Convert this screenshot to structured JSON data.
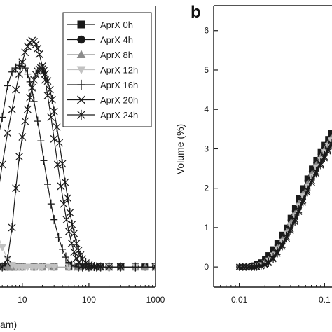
{
  "chart_data": [
    {
      "panel_label": "",
      "type": "line",
      "xscale": "log",
      "xlim": [
        4,
        1000
      ],
      "ylim": [
        -0.3,
        6.6
      ],
      "x_tick_labels": [
        "10",
        "100",
        "1000"
      ],
      "x_ticks": [
        10,
        100,
        1000
      ],
      "xlabel": "am)",
      "legend_placement": "top-right",
      "grid": false,
      "series": [
        {
          "name": "AprX 0h",
          "marker": "square",
          "x": [
            4,
            5,
            6,
            7,
            8,
            10,
            15,
            20,
            30,
            50,
            70,
            100,
            150,
            200,
            300,
            500,
            700,
            1000
          ],
          "y": [
            0,
            0,
            0,
            0,
            0,
            0,
            0,
            0,
            0,
            0,
            0,
            0,
            0,
            0,
            0,
            0,
            0,
            0
          ]
        },
        {
          "name": "AprX 4h",
          "marker": "circle",
          "x": [
            4,
            5,
            6,
            7,
            8,
            10,
            15,
            20,
            30,
            50,
            70,
            100,
            150,
            200,
            300,
            500,
            700,
            1000
          ],
          "y": [
            0,
            0,
            0,
            0,
            0,
            0,
            0,
            0,
            0,
            0,
            0,
            0,
            0,
            0,
            0,
            0,
            0,
            0
          ]
        },
        {
          "name": "AprX 8h",
          "marker": "triangle-up",
          "x": [
            4,
            5,
            6,
            7,
            8,
            10,
            15,
            20,
            30,
            50,
            70,
            100,
            150,
            200,
            300,
            500,
            700,
            1000
          ],
          "y": [
            0,
            0,
            0,
            0,
            0,
            0,
            0,
            0,
            0,
            0,
            0,
            0,
            0,
            0,
            0,
            0,
            0,
            0
          ]
        },
        {
          "name": "AprX 12h",
          "marker": "triangle-down",
          "x": [
            4,
            5,
            6,
            7,
            8,
            9,
            10,
            11,
            12,
            14,
            16,
            18,
            20,
            25,
            30,
            50,
            100,
            200,
            500,
            1000
          ],
          "y": [
            0.95,
            0.5,
            0.2,
            0.05,
            0,
            0,
            0,
            0,
            0,
            0,
            0,
            0,
            0,
            0,
            0,
            0,
            0,
            0,
            0,
            0
          ]
        },
        {
          "name": "AprX 16h",
          "marker": "plus",
          "x": [
            4,
            5,
            6,
            7,
            8,
            9,
            10,
            11,
            12,
            13,
            14,
            15,
            17,
            19,
            21,
            24,
            27,
            30,
            35,
            40,
            45,
            50,
            55,
            60,
            70,
            80,
            100,
            200,
            500,
            1000
          ],
          "y": [
            3.0,
            3.8,
            4.6,
            4.95,
            5.05,
            5.12,
            5.1,
            5.05,
            4.9,
            4.7,
            4.5,
            4.2,
            3.7,
            3.2,
            2.7,
            2.1,
            1.6,
            1.2,
            0.75,
            0.45,
            0.25,
            0.12,
            0.05,
            0.02,
            0,
            0,
            0,
            0,
            0,
            0
          ]
        },
        {
          "name": "AprX 20h",
          "marker": "x",
          "x": [
            4,
            5,
            6,
            7,
            8,
            9,
            10,
            11,
            12,
            13,
            14,
            15,
            16,
            17,
            18,
            20,
            22,
            24,
            27,
            30,
            34,
            38,
            42,
            46,
            50,
            55,
            60,
            65,
            70,
            80,
            90,
            100,
            120,
            150,
            300,
            1000
          ],
          "y": [
            1.5,
            2.6,
            3.4,
            4.0,
            4.5,
            4.9,
            5.2,
            5.45,
            5.6,
            5.7,
            5.75,
            5.72,
            5.65,
            5.55,
            5.4,
            5.1,
            4.75,
            4.35,
            3.8,
            3.25,
            2.6,
            2.05,
            1.6,
            1.2,
            0.9,
            0.6,
            0.38,
            0.22,
            0.12,
            0.04,
            0.01,
            0,
            0,
            0,
            0,
            0
          ]
        },
        {
          "name": "AprX 24h",
          "marker": "star",
          "x": [
            4,
            5,
            6,
            7,
            8,
            9,
            10,
            11,
            12,
            13,
            14,
            15,
            16,
            17,
            18,
            19,
            20,
            21,
            22,
            24,
            26,
            28,
            30,
            33,
            36,
            40,
            44,
            48,
            52,
            56,
            60,
            65,
            70,
            75,
            80,
            90,
            100,
            110,
            120,
            130,
            150,
            200,
            300,
            1000
          ],
          "y": [
            0,
            0,
            0.2,
            1.0,
            2.0,
            2.8,
            3.3,
            3.7,
            4.0,
            4.3,
            4.55,
            4.75,
            4.88,
            4.97,
            5.02,
            5.05,
            5.03,
            4.98,
            4.9,
            4.72,
            4.5,
            4.25,
            3.95,
            3.55,
            3.15,
            2.62,
            2.15,
            1.75,
            1.38,
            1.08,
            0.85,
            0.6,
            0.42,
            0.3,
            0.2,
            0.1,
            0.05,
            0.02,
            0.01,
            0,
            0,
            0,
            0,
            0
          ]
        }
      ]
    },
    {
      "panel_label": "b",
      "type": "line",
      "xscale": "log",
      "xlim": [
        0.005,
        0.2
      ],
      "ylim": [
        -0.3,
        6.6
      ],
      "x_tick_labels": [
        "0.01",
        "0.1"
      ],
      "x_ticks": [
        0.01,
        0.1
      ],
      "y_tick_labels": [
        "0",
        "1",
        "2",
        "3",
        "4",
        "5",
        "6"
      ],
      "y_ticks": [
        0,
        1,
        2,
        3,
        4,
        5,
        6
      ],
      "ylabel": "Volume (%)",
      "grid": false,
      "series": [
        {
          "name": "AprX 0h",
          "marker": "square",
          "x": [
            0.01,
            0.011,
            0.012,
            0.013,
            0.014,
            0.015,
            0.016,
            0.018,
            0.02,
            0.022,
            0.025,
            0.028,
            0.032,
            0.036,
            0.04,
            0.045,
            0.05,
            0.056,
            0.063,
            0.071,
            0.08,
            0.09,
            0.1,
            0.11,
            0.12
          ],
          "y": [
            0,
            0,
            0,
            0,
            0.02,
            0.04,
            0.07,
            0.12,
            0.2,
            0.3,
            0.45,
            0.62,
            0.82,
            1.0,
            1.25,
            1.5,
            1.75,
            2.0,
            2.25,
            2.5,
            2.72,
            2.92,
            3.1,
            3.25,
            3.4
          ]
        },
        {
          "name": "AprX 4h",
          "marker": "circle",
          "x": [
            0.01,
            0.011,
            0.012,
            0.013,
            0.014,
            0.015,
            0.016,
            0.018,
            0.02,
            0.022,
            0.025,
            0.028,
            0.032,
            0.036,
            0.04,
            0.045,
            0.05,
            0.056,
            0.063,
            0.071,
            0.08,
            0.09,
            0.1,
            0.11,
            0.12
          ],
          "y": [
            0,
            0,
            0,
            0,
            0,
            0.02,
            0.04,
            0.08,
            0.15,
            0.24,
            0.38,
            0.55,
            0.75,
            0.95,
            1.18,
            1.42,
            1.68,
            1.93,
            2.18,
            2.42,
            2.64,
            2.85,
            3.02,
            3.18,
            3.32
          ]
        },
        {
          "name": "AprX 8h",
          "marker": "triangle-up",
          "x": [
            0.01,
            0.011,
            0.012,
            0.013,
            0.014,
            0.015,
            0.016,
            0.018,
            0.02,
            0.022,
            0.025,
            0.028,
            0.032,
            0.036,
            0.04,
            0.045,
            0.05,
            0.056,
            0.063,
            0.071,
            0.08,
            0.09,
            0.1,
            0.11,
            0.12
          ],
          "y": [
            0,
            0,
            0,
            0,
            0,
            0.01,
            0.03,
            0.06,
            0.12,
            0.2,
            0.33,
            0.5,
            0.7,
            0.9,
            1.12,
            1.36,
            1.62,
            1.87,
            2.12,
            2.37,
            2.6,
            2.8,
            2.98,
            3.14,
            3.28
          ]
        },
        {
          "name": "AprX 12h",
          "marker": "triangle-down",
          "x": [
            0.01,
            0.011,
            0.012,
            0.013,
            0.014,
            0.015,
            0.016,
            0.018,
            0.02,
            0.022,
            0.025,
            0.028,
            0.032,
            0.036,
            0.04,
            0.045,
            0.05,
            0.056,
            0.063,
            0.071,
            0.08,
            0.09,
            0.1,
            0.11,
            0.12
          ],
          "y": [
            0,
            0,
            0,
            0,
            0,
            0,
            0.02,
            0.05,
            0.1,
            0.17,
            0.3,
            0.46,
            0.65,
            0.85,
            1.06,
            1.3,
            1.55,
            1.8,
            2.05,
            2.3,
            2.52,
            2.73,
            2.92,
            3.08,
            3.22
          ]
        },
        {
          "name": "AprX 16h",
          "marker": "plus",
          "x": [
            0.01,
            0.011,
            0.012,
            0.013,
            0.014,
            0.015,
            0.016,
            0.018,
            0.02,
            0.022,
            0.025,
            0.028,
            0.032,
            0.036,
            0.04,
            0.045,
            0.05,
            0.056,
            0.063,
            0.071,
            0.08,
            0.09,
            0.1,
            0.11,
            0.12
          ],
          "y": [
            0,
            0,
            0,
            0,
            0,
            0,
            0.01,
            0.04,
            0.08,
            0.14,
            0.26,
            0.42,
            0.6,
            0.8,
            1.0,
            1.24,
            1.48,
            1.73,
            1.98,
            2.23,
            2.45,
            2.66,
            2.85,
            3.02,
            3.16
          ]
        },
        {
          "name": "AprX 20h",
          "marker": "x",
          "x": [
            0.01,
            0.011,
            0.012,
            0.013,
            0.014,
            0.015,
            0.016,
            0.018,
            0.02,
            0.022,
            0.025,
            0.028,
            0.032,
            0.036,
            0.04,
            0.045,
            0.05,
            0.056,
            0.063,
            0.071,
            0.08,
            0.09,
            0.1,
            0.11,
            0.12
          ],
          "y": [
            0,
            0,
            0,
            0,
            0,
            0,
            0.01,
            0.03,
            0.07,
            0.12,
            0.22,
            0.38,
            0.56,
            0.76,
            0.96,
            1.2,
            1.44,
            1.69,
            1.94,
            2.19,
            2.41,
            2.62,
            2.8,
            2.97,
            3.12
          ]
        },
        {
          "name": "AprX 24h",
          "marker": "star",
          "x": [
            0.01,
            0.011,
            0.012,
            0.013,
            0.014,
            0.015,
            0.016,
            0.018,
            0.02,
            0.022,
            0.025,
            0.028,
            0.032,
            0.036,
            0.04,
            0.045,
            0.05,
            0.056,
            0.063,
            0.071,
            0.08,
            0.09,
            0.1,
            0.11,
            0.12
          ],
          "y": [
            0,
            0,
            0,
            0,
            0,
            0,
            0,
            0.02,
            0.05,
            0.1,
            0.2,
            0.34,
            0.52,
            0.72,
            0.92,
            1.15,
            1.4,
            1.64,
            1.89,
            2.14,
            2.37,
            2.58,
            2.76,
            2.93,
            3.08
          ]
        }
      ]
    }
  ],
  "colors": {
    "axis": "#1a1a1a",
    "line": "#1a1a1a",
    "marker_dark": "#1a1a1a",
    "marker_mid": "#8c8c8c",
    "marker_light": "#c2c2c2",
    "background": "#ffffff"
  },
  "series_colors": [
    "#1a1a1a",
    "#1a1a1a",
    "#8c8c8c",
    "#c2c2c2",
    "#1a1a1a",
    "#1a1a1a",
    "#1a1a1a"
  ]
}
